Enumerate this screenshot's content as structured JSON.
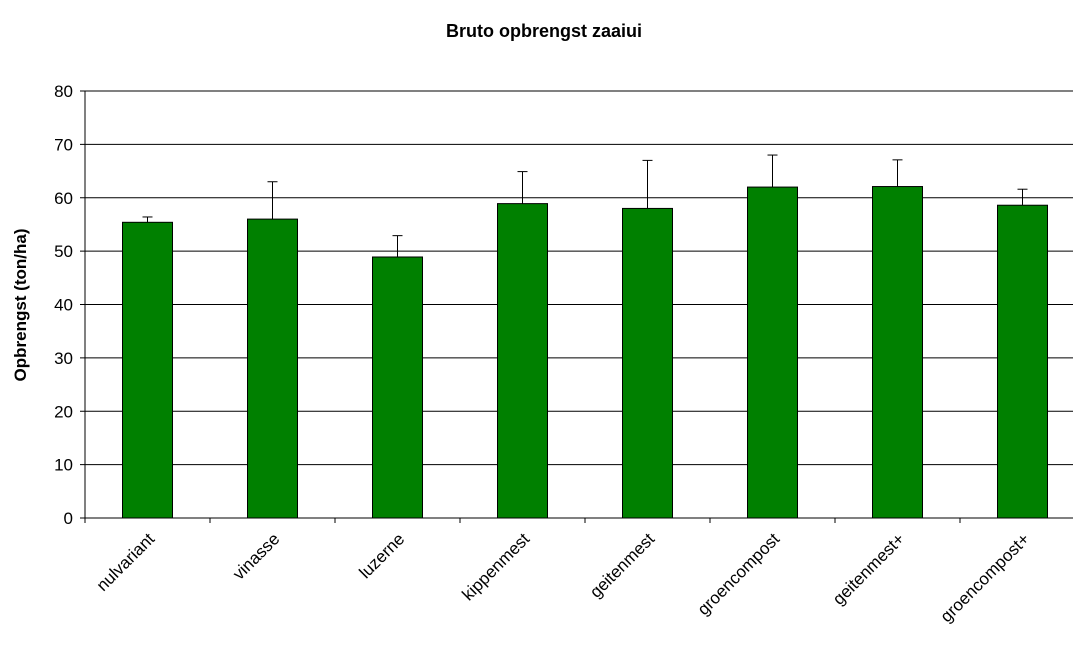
{
  "chart_data": {
    "type": "bar",
    "title": "Bruto opbrengst zaaiui",
    "y_label": "Opbrengst (ton/ha)",
    "categories": [
      "nulvariant",
      "vinasse",
      "luzerne",
      "kippenmest",
      "geitenmest",
      "groencompost",
      "geitenmest+",
      "groencompost+"
    ],
    "values": [
      55.4,
      56,
      48.9,
      58.9,
      58,
      62,
      62.1,
      58.6
    ],
    "errors": [
      1,
      7,
      4,
      6,
      9,
      6,
      5,
      3
    ],
    "color": "#008000",
    "ylim": [
      0,
      80
    ],
    "yticks": [
      0,
      10,
      20,
      30,
      40,
      50,
      60,
      70,
      80
    ],
    "grid": true
  }
}
